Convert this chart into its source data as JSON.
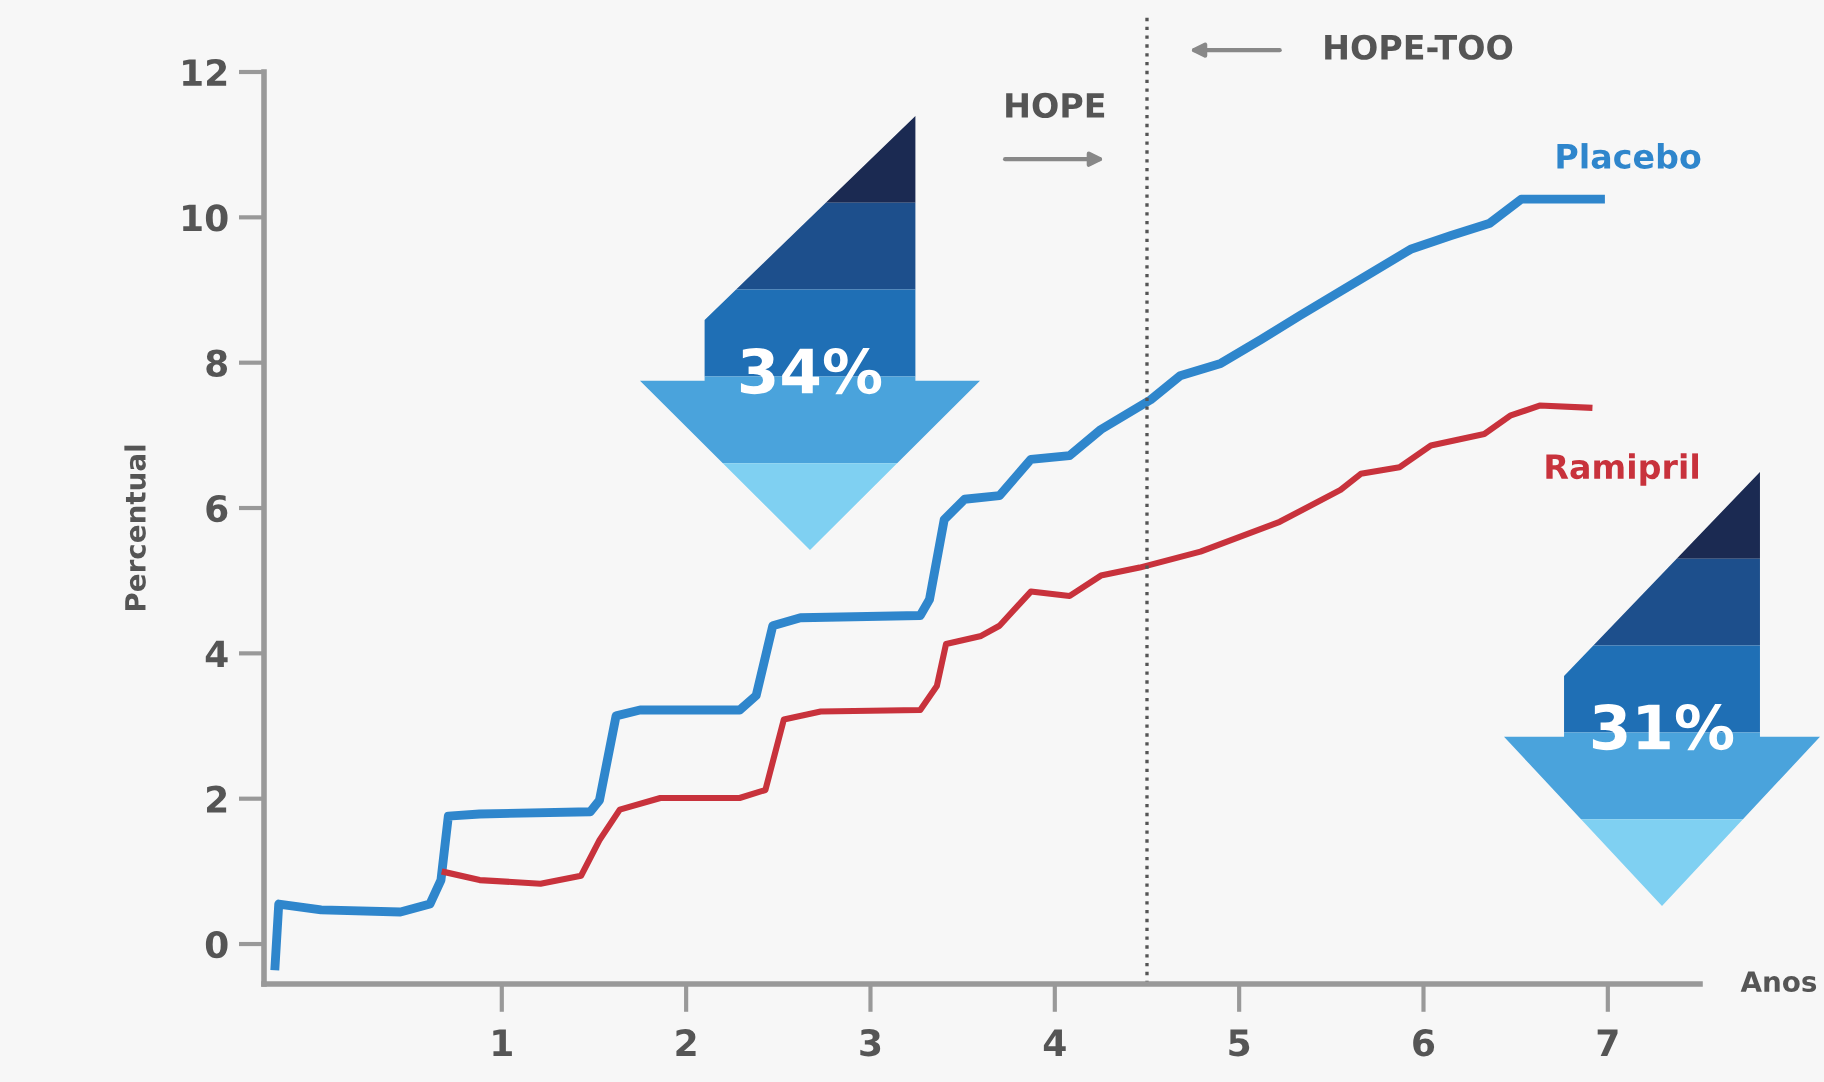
{
  "chart_data": {
    "type": "line",
    "xlabel": "Anos",
    "ylabel": "Percentual",
    "xlim": [
      -0.29,
      7.5
    ],
    "ylim": [
      -0.55,
      12
    ],
    "xticks": [
      1,
      2,
      3,
      4,
      5,
      6,
      7
    ],
    "yticks": [
      0,
      2,
      4,
      6,
      8,
      10,
      12
    ],
    "grid": false,
    "legend": false,
    "series": [
      {
        "name": "Placebo",
        "color": "#2f86cc",
        "x": [
          -0.23,
          -0.21,
          0.02,
          0.45,
          0.61,
          0.67,
          0.71,
          0.88,
          1.48,
          1.53,
          1.62,
          1.75,
          2.29,
          2.38,
          2.47,
          2.62,
          3.27,
          3.32,
          3.4,
          3.51,
          3.7,
          3.87,
          4.08,
          4.25,
          4.52,
          4.68,
          4.9,
          5.12,
          5.33,
          5.66,
          5.93,
          6.15,
          6.36,
          6.53,
          6.96
        ],
        "values": [
          -0.3,
          0.55,
          0.47,
          0.44,
          0.55,
          0.88,
          1.76,
          1.79,
          1.82,
          1.98,
          3.14,
          3.22,
          3.22,
          3.42,
          4.38,
          4.49,
          4.52,
          4.74,
          5.84,
          6.12,
          6.17,
          6.67,
          6.72,
          7.08,
          7.49,
          7.82,
          7.99,
          8.32,
          8.65,
          9.15,
          9.56,
          9.75,
          9.92,
          10.25,
          10.25
        ]
      },
      {
        "name": "Ramipril",
        "color": "#c8323c",
        "x": [
          0.69,
          0.88,
          1.21,
          1.43,
          1.53,
          1.64,
          1.86,
          2.29,
          2.43,
          2.53,
          2.73,
          3.27,
          3.36,
          3.41,
          3.6,
          3.7,
          3.87,
          4.08,
          4.25,
          4.46,
          4.79,
          5.22,
          5.55,
          5.66,
          5.87,
          6.04,
          6.33,
          6.47,
          6.63,
          6.9
        ],
        "values": [
          0.99,
          0.88,
          0.83,
          0.94,
          1.43,
          1.85,
          2.01,
          2.01,
          2.12,
          3.09,
          3.2,
          3.22,
          3.55,
          4.13,
          4.24,
          4.38,
          4.85,
          4.79,
          5.07,
          5.18,
          5.4,
          5.81,
          6.25,
          6.47,
          6.56,
          6.86,
          7.02,
          7.27,
          7.41,
          7.38
        ]
      }
    ],
    "ref_lines": [
      {
        "axis": "x",
        "value": 4.5,
        "color": "#555555",
        "line_style": "dotted"
      }
    ],
    "annotations": [
      "HOPE",
      "HOPE-TOO",
      "34%",
      "31%"
    ]
  }
}
